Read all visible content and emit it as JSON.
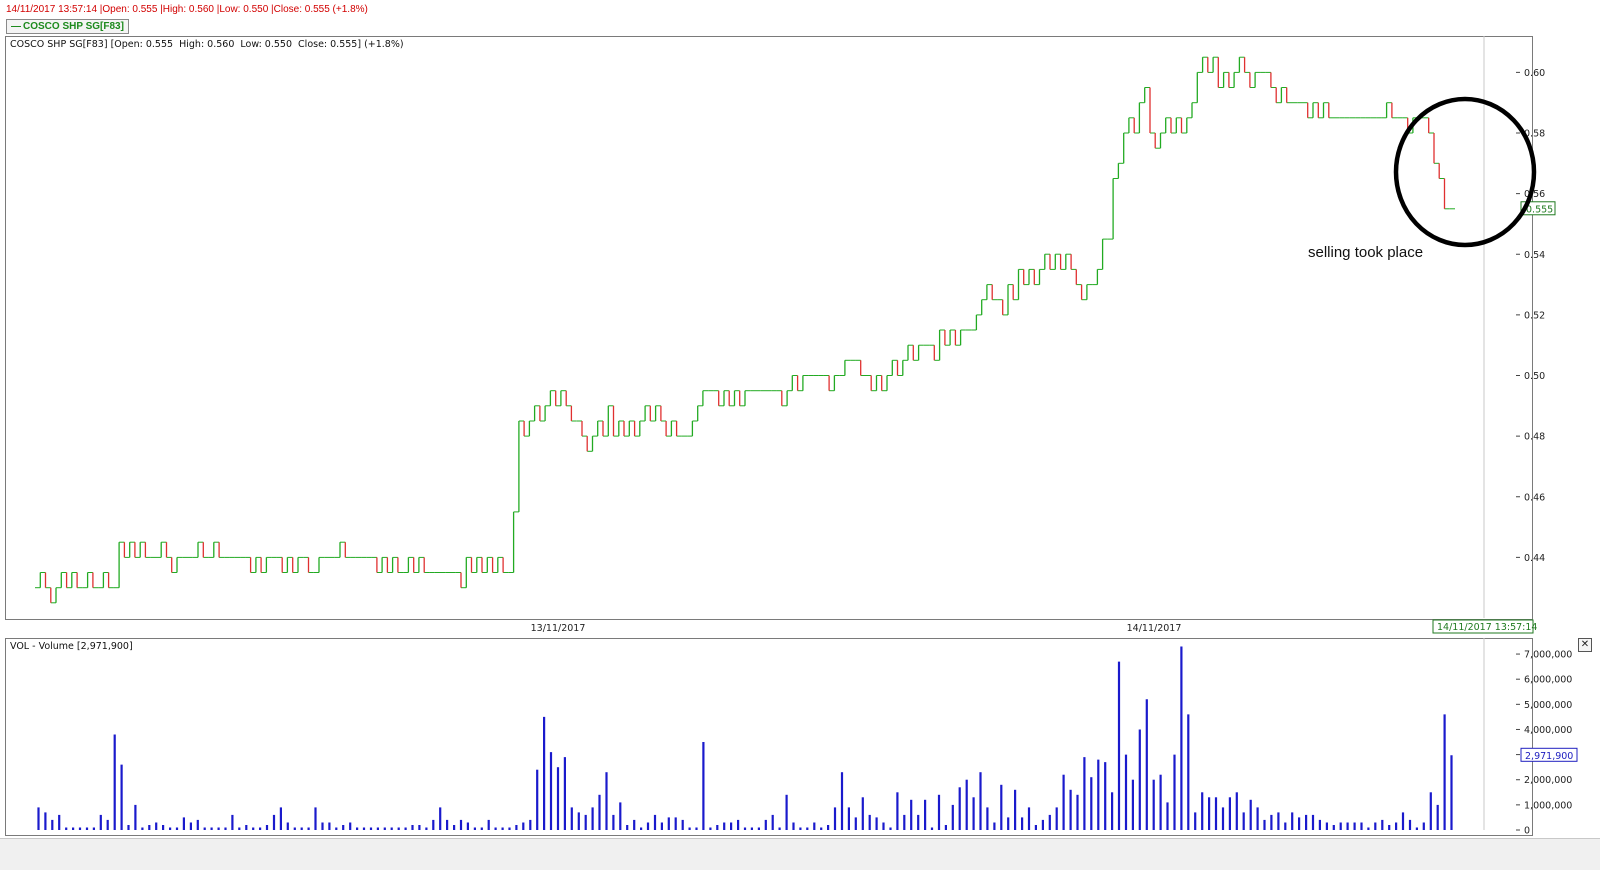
{
  "header": {
    "info_line": "14/11/2017 13:57:14 |Open: 0.555 |High: 0.560 |Low: 0.550 |Close: 0.555 (+1.8%)",
    "legend_label": "COSCO SHP SG[F83]"
  },
  "price_panel": {
    "title": "COSCO SHP SG[F83] [Open: 0.555  High: 0.560  Low: 0.550  Close: 0.555] (+1.8%)",
    "last_price_tag": "0.555",
    "annotation": "selling took place",
    "timestamp_tag": "14/11/2017 13:57:14"
  },
  "volume_panel": {
    "title": "VOL - Volume [2,971,900]",
    "last_volume_tag": "2,971,900"
  },
  "colors": {
    "up": "#22aa22",
    "down": "#e03030",
    "volume": "#1a1acc"
  },
  "chart_data": [
    {
      "type": "line",
      "series": [
        {
          "name": "COSCO SHP SG[F83]",
          "values": [
            0.43,
            0.435,
            0.43,
            0.425,
            0.43,
            0.435,
            0.43,
            0.435,
            0.43,
            0.43,
            0.435,
            0.43,
            0.43,
            0.435,
            0.43,
            0.43,
            0.445,
            0.44,
            0.445,
            0.44,
            0.445,
            0.44,
            0.44,
            0.44,
            0.445,
            0.44,
            0.435,
            0.44,
            0.44,
            0.44,
            0.44,
            0.445,
            0.44,
            0.44,
            0.445,
            0.44,
            0.44,
            0.44,
            0.44,
            0.44,
            0.44,
            0.435,
            0.44,
            0.435,
            0.44,
            0.44,
            0.44,
            0.435,
            0.44,
            0.435,
            0.44,
            0.44,
            0.435,
            0.435,
            0.44,
            0.44,
            0.44,
            0.44,
            0.445,
            0.44,
            0.44,
            0.44,
            0.44,
            0.44,
            0.44,
            0.435,
            0.44,
            0.435,
            0.44,
            0.435,
            0.435,
            0.44,
            0.435,
            0.44,
            0.435,
            0.435,
            0.435,
            0.435,
            0.435,
            0.435,
            0.435,
            0.43,
            0.44,
            0.435,
            0.44,
            0.435,
            0.44,
            0.435,
            0.44,
            0.435,
            0.435,
            0.455,
            0.485,
            0.48,
            0.485,
            0.49,
            0.485,
            0.49,
            0.495,
            0.49,
            0.495,
            0.49,
            0.485,
            0.485,
            0.48,
            0.475,
            0.48,
            0.485,
            0.48,
            0.49,
            0.48,
            0.485,
            0.48,
            0.485,
            0.48,
            0.485,
            0.49,
            0.485,
            0.49,
            0.485,
            0.48,
            0.485,
            0.48,
            0.48,
            0.48,
            0.485,
            0.49,
            0.495,
            0.495,
            0.495,
            0.49,
            0.495,
            0.49,
            0.495,
            0.49,
            0.495,
            0.495,
            0.495,
            0.495,
            0.495,
            0.495,
            0.495,
            0.49,
            0.495,
            0.5,
            0.495,
            0.5,
            0.5,
            0.5,
            0.5,
            0.5,
            0.495,
            0.5,
            0.5,
            0.505,
            0.505,
            0.505,
            0.5,
            0.5,
            0.495,
            0.5,
            0.495,
            0.5,
            0.505,
            0.5,
            0.505,
            0.51,
            0.505,
            0.51,
            0.51,
            0.51,
            0.505,
            0.515,
            0.51,
            0.515,
            0.51,
            0.515,
            0.515,
            0.515,
            0.52,
            0.525,
            0.53,
            0.525,
            0.525,
            0.52,
            0.53,
            0.525,
            0.535,
            0.53,
            0.535,
            0.53,
            0.535,
            0.54,
            0.535,
            0.54,
            0.535,
            0.54,
            0.535,
            0.53,
            0.525,
            0.53,
            0.53,
            0.535,
            0.545,
            0.545,
            0.565,
            0.57,
            0.58,
            0.585,
            0.58,
            0.59,
            0.595,
            0.58,
            0.575,
            0.58,
            0.585,
            0.58,
            0.585,
            0.58,
            0.585,
            0.59,
            0.6,
            0.605,
            0.6,
            0.605,
            0.595,
            0.6,
            0.595,
            0.6,
            0.605,
            0.6,
            0.595,
            0.6,
            0.6,
            0.6,
            0.595,
            0.59,
            0.595,
            0.59,
            0.59,
            0.59,
            0.59,
            0.585,
            0.59,
            0.585,
            0.59,
            0.585,
            0.585,
            0.585,
            0.585,
            0.585,
            0.585,
            0.585,
            0.585,
            0.585,
            0.585,
            0.585,
            0.59,
            0.585,
            0.585,
            0.585,
            0.58,
            0.585,
            0.585,
            0.585,
            0.58,
            0.57,
            0.565,
            0.555,
            0.555
          ]
        }
      ],
      "x_labels": [
        "13/11/2017",
        "14/11/2017"
      ],
      "y_ticks": [
        0.44,
        0.46,
        0.48,
        0.5,
        0.52,
        0.54,
        0.56,
        0.58,
        0.6
      ],
      "ylim": [
        0.42,
        0.612
      ],
      "last_value": 0.555,
      "grid": false
    },
    {
      "type": "bar",
      "series": [
        {
          "name": "VOL - Volume",
          "values": [
            900000,
            700000,
            400000,
            600000,
            100000,
            100000,
            100000,
            100000,
            100000,
            600000,
            400000,
            3800000,
            2600000,
            200000,
            1000000,
            100000,
            200000,
            300000,
            200000,
            100000,
            100000,
            500000,
            300000,
            400000,
            100000,
            100000,
            100000,
            100000,
            600000,
            100000,
            200000,
            100000,
            100000,
            200000,
            600000,
            900000,
            300000,
            100000,
            100000,
            100000,
            900000,
            300000,
            300000,
            100000,
            200000,
            300000,
            100000,
            100000,
            100000,
            100000,
            100000,
            100000,
            100000,
            100000,
            200000,
            200000,
            100000,
            400000,
            900000,
            400000,
            200000,
            400000,
            300000,
            100000,
            100000,
            400000,
            100000,
            100000,
            100000,
            200000,
            300000,
            400000,
            2400000,
            4500000,
            3100000,
            2500000,
            2900000,
            900000,
            700000,
            600000,
            900000,
            1400000,
            2300000,
            600000,
            1100000,
            200000,
            400000,
            100000,
            300000,
            600000,
            300000,
            500000,
            500000,
            400000,
            100000,
            100000,
            3500000,
            100000,
            200000,
            300000,
            300000,
            400000,
            100000,
            100000,
            100000,
            400000,
            600000,
            100000,
            1400000,
            300000,
            100000,
            100000,
            300000,
            100000,
            200000,
            900000,
            2300000,
            900000,
            500000,
            1300000,
            600000,
            500000,
            300000,
            100000,
            1500000,
            600000,
            1200000,
            600000,
            1200000,
            100000,
            1400000,
            200000,
            1000000,
            1700000,
            2000000,
            1300000,
            2300000,
            900000,
            300000,
            1800000,
            500000,
            1600000,
            500000,
            900000,
            200000,
            400000,
            600000,
            900000,
            2200000,
            1600000,
            1400000,
            2900000,
            2100000,
            2800000,
            2700000,
            1500000,
            6700000,
            3000000,
            2000000,
            4000000,
            5200000,
            2000000,
            2200000,
            1100000,
            3000000,
            7300000,
            4600000,
            700000,
            1500000,
            1300000,
            1300000,
            900000,
            1300000,
            1500000,
            700000,
            1200000,
            900000,
            400000,
            600000,
            700000,
            300000,
            700000,
            500000,
            600000,
            600000,
            400000,
            300000,
            200000,
            300000,
            300000,
            300000,
            300000,
            100000,
            300000,
            400000,
            200000,
            300000,
            700000,
            400000,
            100000,
            300000,
            1500000,
            1000000,
            4600000,
            2971900
          ]
        }
      ],
      "y_ticks": [
        0,
        1000000,
        2000000,
        3000000,
        4000000,
        5000000,
        6000000,
        7000000
      ],
      "y_tick_labels": [
        "0",
        "1,000,000",
        "2,000,000",
        "3,000,000",
        "4,000,000",
        "5,000,000",
        "6,000,000",
        "7,000,000"
      ],
      "ylim": [
        0,
        7400000
      ],
      "last_value": 2971900,
      "grid": false
    }
  ]
}
